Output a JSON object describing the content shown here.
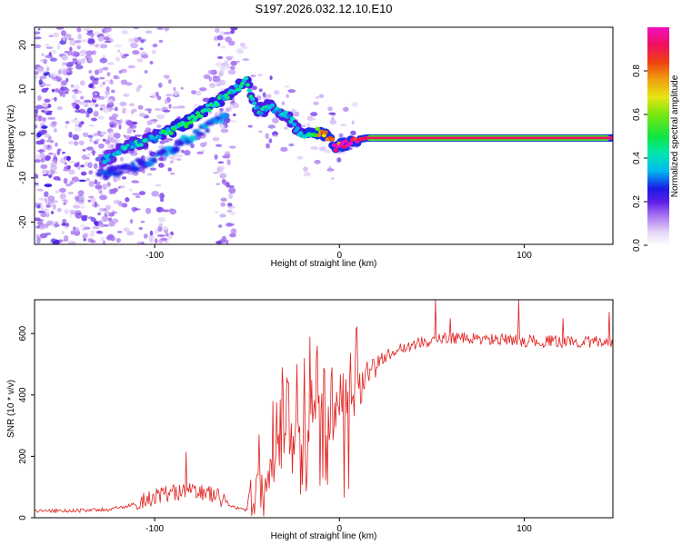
{
  "figure_title": "S197.2026.032.12.10.E10",
  "colors": {
    "snr_line": "#e0201e",
    "frame": "#000000",
    "background": "#ffffff"
  },
  "chart_data": [
    {
      "type": "heatmap",
      "name": "spectrogram",
      "title": "S197.2026.032.12.10.E10",
      "xlabel": "Height of straight line (km)",
      "ylabel": "Frequency (Hz)",
      "xlim": [
        -165,
        148
      ],
      "ylim": [
        -25,
        24
      ],
      "xticks": [
        -100,
        0,
        100
      ],
      "xtick_labels": [
        "-100",
        "0",
        "100"
      ],
      "yticks": [
        -20,
        -10,
        0,
        10,
        20
      ],
      "ytick_labels": [
        "-20",
        "-10",
        "0",
        "10",
        "20"
      ],
      "ridge": {
        "description": "main spectral ridge (center frequency vs height)",
        "x": [
          -128,
          -115,
          -100,
          -90,
          -80,
          -70,
          -60,
          -50,
          -45,
          -38,
          -32,
          -26,
          -20,
          -14,
          -8,
          -2,
          2,
          8,
          15,
          30,
          60,
          100,
          148
        ],
        "y": [
          -6,
          -3,
          -1,
          1,
          3,
          6,
          9,
          12,
          5,
          6,
          5,
          3,
          -1,
          0.5,
          0,
          -3,
          -2.5,
          -1.5,
          -1,
          -1,
          -1,
          -1,
          -1
        ],
        "amplitude": [
          0.3,
          0.33,
          0.35,
          0.4,
          0.42,
          0.4,
          0.38,
          0.38,
          0.35,
          0.36,
          0.33,
          0.35,
          0.35,
          0.55,
          0.75,
          0.85,
          0.9,
          0.9,
          0.92,
          0.97,
          0.97,
          0.95,
          0.95
        ]
      },
      "secondary_ridge": {
        "x": [
          -130,
          -110,
          -95,
          -85,
          -75,
          -62
        ],
        "y": [
          -9,
          -7,
          -5,
          -2,
          1,
          4
        ],
        "amplitude": [
          0.25,
          0.3,
          0.3,
          0.33,
          0.33,
          0.3
        ]
      },
      "colorbar": {
        "label": "Normalized spectral amplitude",
        "range": [
          0,
          1
        ],
        "ticks": [
          0.0,
          0.2,
          0.4,
          0.6,
          0.8
        ],
        "tick_labels": [
          "0.0",
          "0.2",
          "0.4",
          "0.6",
          "0.8"
        ]
      }
    },
    {
      "type": "line",
      "name": "snr",
      "xlabel": "Height of straight line (km)",
      "ylabel": "SNR (10 * v/v)",
      "xlim": [
        -165,
        148
      ],
      "ylim": [
        0,
        710
      ],
      "xticks": [
        -100,
        0,
        100
      ],
      "xtick_labels": [
        "-100",
        "0",
        "100"
      ],
      "yticks": [
        0,
        200,
        400,
        600
      ],
      "ytick_labels": [
        "0",
        "200",
        "400",
        "600"
      ],
      "envelope": {
        "description": "baseline SNR trend; trace is noisy around this baseline",
        "x": [
          -165,
          -140,
          -125,
          -115,
          -100,
          -90,
          -80,
          -70,
          -60,
          -50,
          -45,
          -40,
          -35,
          -30,
          -25,
          -20,
          -15,
          -10,
          -5,
          0,
          5,
          10,
          15,
          20,
          25,
          30,
          40,
          50,
          60,
          80,
          100,
          120,
          148
        ],
        "y": [
          20,
          22,
          25,
          35,
          60,
          75,
          80,
          70,
          40,
          20,
          25,
          60,
          140,
          220,
          250,
          260,
          270,
          300,
          290,
          320,
          360,
          400,
          450,
          500,
          520,
          540,
          560,
          570,
          580,
          575,
          570,
          568,
          565
        ]
      },
      "spikes": {
        "x": [
          -83,
          -42,
          -36,
          -31,
          -28,
          -23,
          -19,
          -16,
          -12,
          -8,
          -4,
          2,
          52,
          60,
          97,
          121,
          146
        ],
        "y": [
          215,
          140,
          380,
          490,
          440,
          500,
          520,
          590,
          560,
          480,
          490,
          470,
          710,
          650,
          710,
          650,
          670
        ]
      }
    }
  ]
}
